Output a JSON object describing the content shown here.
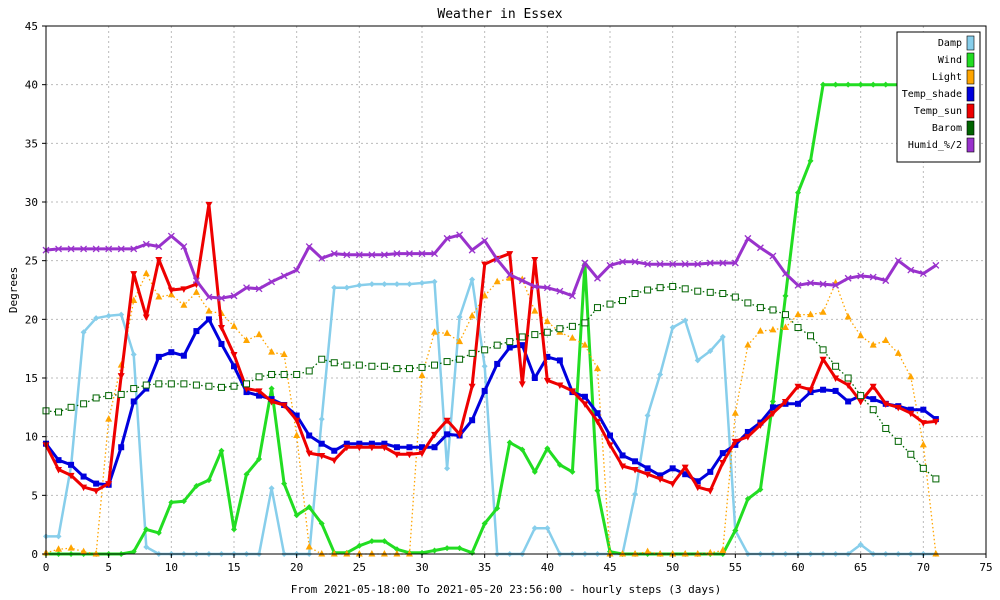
{
  "chart_data": {
    "type": "line",
    "title": "Weather in Essex",
    "xlabel": "From 2021-05-18:00 To 2021-05-20 23:56:00 - hourly steps (3 days)",
    "ylabel": "Degrees",
    "xlim": [
      0,
      75
    ],
    "ylim": [
      0,
      45
    ],
    "xticks": [
      0,
      5,
      10,
      15,
      20,
      25,
      30,
      35,
      40,
      45,
      50,
      55,
      60,
      65,
      70,
      75
    ],
    "yticks": [
      0,
      5,
      10,
      15,
      20,
      25,
      30,
      35,
      40,
      45
    ],
    "grid": true,
    "legend_position": "top-right",
    "x": [
      0,
      1,
      2,
      3,
      4,
      5,
      6,
      7,
      8,
      9,
      10,
      11,
      12,
      13,
      14,
      15,
      16,
      17,
      18,
      19,
      20,
      21,
      22,
      23,
      24,
      25,
      26,
      27,
      28,
      29,
      30,
      31,
      32,
      33,
      34,
      35,
      36,
      37,
      38,
      39,
      40,
      41,
      42,
      43,
      44,
      45,
      46,
      47,
      48,
      49,
      50,
      51,
      52,
      53,
      54,
      55,
      56,
      57,
      58,
      59,
      60,
      61,
      62,
      63,
      64,
      65,
      66,
      67,
      68,
      69,
      70,
      71
    ],
    "series": [
      {
        "name": "Damp",
        "color": "#87ceeb",
        "style": "solid",
        "marker": "diamond",
        "values": [
          1.5,
          1.5,
          7.5,
          18.9,
          20.1,
          20.3,
          20.4,
          17.0,
          0.6,
          0.0,
          0.0,
          0.0,
          0.0,
          0.0,
          0.0,
          0.0,
          0.0,
          0.0,
          5.6,
          0.0,
          0.0,
          0.0,
          11.5,
          22.7,
          22.7,
          22.9,
          23.0,
          23.0,
          23.0,
          23.0,
          23.1,
          23.2,
          7.3,
          20.2,
          23.4,
          16.0,
          0.0,
          0.0,
          0.0,
          2.2,
          2.2,
          0.0,
          0.0,
          0.0,
          0.0,
          0.0,
          0.0,
          5.1,
          11.8,
          15.3,
          19.3,
          19.9,
          16.5,
          17.3,
          18.5,
          2.0,
          0.0,
          0.0,
          0.0,
          0.0,
          0.0,
          0.0,
          0.0,
          0.0,
          0.0,
          0.8,
          0.0,
          0.0,
          0.0,
          0.0,
          0.0,
          0.0
        ]
      },
      {
        "name": "Wind",
        "color": "#22dd22",
        "style": "solid",
        "marker": "diamond",
        "values": [
          0.0,
          0.0,
          0.0,
          0.0,
          0.0,
          0.0,
          0.0,
          0.2,
          2.1,
          1.8,
          4.4,
          4.5,
          5.8,
          6.3,
          8.8,
          2.1,
          6.8,
          8.1,
          14.1,
          6.0,
          3.3,
          4.0,
          2.6,
          0.1,
          0.1,
          0.7,
          1.1,
          1.1,
          0.4,
          0.1,
          0.1,
          0.3,
          0.5,
          0.5,
          0.1,
          2.6,
          3.9,
          9.5,
          8.9,
          7.0,
          9.0,
          7.6,
          7.0,
          24.7,
          5.4,
          0.2,
          0.0,
          0.0,
          0.0,
          0.0,
          0.0,
          0.0,
          0.0,
          0.0,
          0.0,
          2.0,
          4.7,
          5.5,
          13.0,
          22.0,
          30.8,
          33.5,
          40.0,
          40.0,
          40.0,
          40.0,
          40.0,
          40.0,
          40.0,
          40.0,
          40.0,
          40.0
        ]
      },
      {
        "name": "Light",
        "color": "#ffa500",
        "style": "dotted",
        "marker": "triangle",
        "values": [
          0.1,
          0.4,
          0.5,
          0.2,
          0.0,
          11.5,
          16.1,
          21.6,
          23.9,
          21.9,
          22.1,
          21.2,
          22.3,
          20.7,
          20.5,
          19.4,
          18.2,
          18.7,
          17.2,
          17.0,
          10.1,
          0.6,
          0.0,
          0.0,
          0.0,
          0.0,
          0.0,
          0.0,
          0.0,
          0.0,
          15.2,
          18.9,
          18.8,
          18.1,
          20.3,
          22.0,
          23.2,
          23.5,
          23.4,
          20.7,
          19.8,
          18.9,
          18.4,
          17.8,
          15.8,
          0.0,
          0.0,
          0.0,
          0.2,
          0.0,
          0.0,
          0.0,
          0.0,
          0.1,
          0.3,
          12.0,
          17.8,
          19.0,
          19.1,
          19.3,
          20.4,
          20.4,
          20.6,
          23.1,
          20.2,
          18.6,
          17.8,
          18.2,
          17.1,
          15.1,
          9.3,
          0.0
        ]
      },
      {
        "name": "Temp_shade",
        "color": "#0000dd",
        "style": "solid",
        "marker": "square",
        "values": [
          9.4,
          8.0,
          7.6,
          6.6,
          6.0,
          5.9,
          9.1,
          13.0,
          14.1,
          16.8,
          17.2,
          16.9,
          19.0,
          20.0,
          17.9,
          16.0,
          13.8,
          13.5,
          13.2,
          12.7,
          11.8,
          10.1,
          9.4,
          8.8,
          9.4,
          9.4,
          9.4,
          9.4,
          9.1,
          9.1,
          9.1,
          9.1,
          10.2,
          10.1,
          11.4,
          13.9,
          16.2,
          17.6,
          17.8,
          15.0,
          16.8,
          16.5,
          13.8,
          13.4,
          12.0,
          10.1,
          8.4,
          7.9,
          7.3,
          6.7,
          7.3,
          6.8,
          6.2,
          7.0,
          8.6,
          9.3,
          10.4,
          11.2,
          12.5,
          12.8,
          12.8,
          13.8,
          14.0,
          13.9,
          13.0,
          13.5,
          13.2,
          12.8,
          12.6,
          12.3,
          12.3,
          11.5
        ]
      },
      {
        "name": "Temp_sun",
        "color": "#ee0000",
        "style": "solid",
        "marker": "triangle-down",
        "values": [
          9.3,
          7.2,
          6.7,
          5.7,
          5.4,
          6.0,
          15.2,
          23.9,
          20.2,
          25.1,
          22.5,
          22.6,
          23.0,
          29.8,
          19.3,
          17.0,
          14.1,
          13.9,
          13.0,
          12.7,
          11.4,
          8.6,
          8.4,
          8.0,
          9.1,
          9.1,
          9.1,
          9.1,
          8.5,
          8.5,
          8.6,
          10.2,
          11.4,
          10.2,
          14.3,
          24.7,
          25.2,
          25.6,
          14.5,
          25.1,
          14.8,
          14.4,
          13.9,
          12.8,
          11.3,
          9.3,
          7.5,
          7.2,
          6.8,
          6.4,
          6.0,
          7.4,
          5.7,
          5.4,
          7.8,
          9.6,
          10.0,
          11.0,
          12.0,
          13.0,
          14.3,
          14.0,
          16.6,
          15.0,
          14.4,
          13.0,
          14.3,
          12.8,
          12.5,
          12.0,
          11.2,
          11.3
        ]
      },
      {
        "name": "Barom",
        "color": "#006400",
        "style": "dotted",
        "marker": "open-square",
        "values": [
          12.2,
          12.1,
          12.5,
          12.8,
          13.3,
          13.5,
          13.6,
          14.1,
          14.4,
          14.5,
          14.5,
          14.5,
          14.4,
          14.3,
          14.2,
          14.3,
          14.5,
          15.1,
          15.3,
          15.3,
          15.3,
          15.6,
          16.6,
          16.3,
          16.1,
          16.1,
          16.0,
          16.0,
          15.8,
          15.8,
          15.9,
          16.1,
          16.4,
          16.6,
          17.1,
          17.4,
          17.8,
          18.1,
          18.5,
          18.7,
          18.9,
          19.2,
          19.4,
          19.7,
          21.0,
          21.3,
          21.6,
          22.2,
          22.5,
          22.7,
          22.8,
          22.6,
          22.4,
          22.3,
          22.2,
          21.9,
          21.4,
          21.0,
          20.8,
          20.4,
          19.3,
          18.6,
          17.4,
          16.0,
          15.0,
          13.5,
          12.3,
          10.7,
          9.6,
          8.5,
          7.3,
          6.4
        ]
      },
      {
        "name": "Humid_%/2",
        "color": "#9932cc",
        "style": "solid",
        "marker": "cross",
        "values": [
          25.9,
          26.0,
          26.0,
          26.0,
          26.0,
          26.0,
          26.0,
          26.0,
          26.4,
          26.2,
          27.1,
          26.2,
          23.3,
          21.9,
          21.8,
          22.0,
          22.7,
          22.6,
          23.2,
          23.7,
          24.2,
          26.2,
          25.2,
          25.6,
          25.5,
          25.5,
          25.5,
          25.5,
          25.6,
          25.6,
          25.6,
          25.6,
          26.9,
          27.2,
          25.9,
          26.7,
          25.1,
          23.8,
          23.3,
          22.8,
          22.7,
          22.4,
          22.0,
          24.8,
          23.5,
          24.6,
          24.9,
          24.9,
          24.7,
          24.7,
          24.7,
          24.7,
          24.7,
          24.8,
          24.8,
          24.8,
          26.9,
          26.1,
          25.4,
          23.9,
          22.9,
          23.1,
          23.0,
          22.9,
          23.5,
          23.7,
          23.6,
          23.3,
          25.0,
          24.2,
          23.9,
          24.6
        ]
      }
    ]
  }
}
